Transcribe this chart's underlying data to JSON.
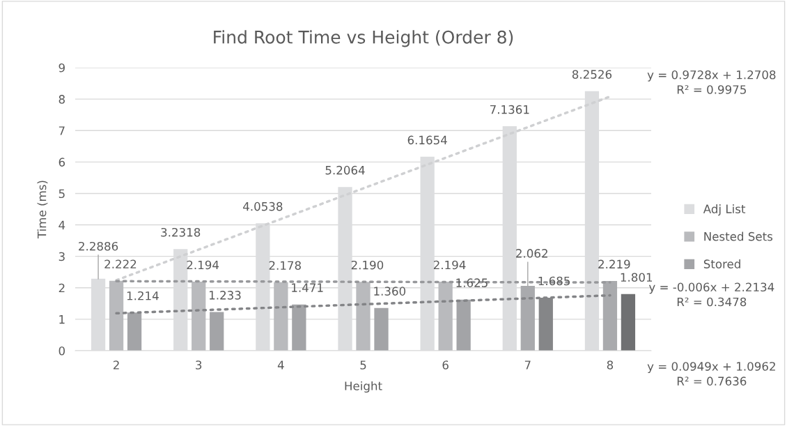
{
  "chart_data": {
    "type": "bar",
    "title": "Find Root Time vs Height (Order 8)",
    "xlabel": "Height",
    "ylabel": "Time (ms)",
    "categories": [
      "2",
      "3",
      "4",
      "5",
      "6",
      "7",
      "8"
    ],
    "series": [
      {
        "name": "Adj List",
        "color": "#dcdddf",
        "values": [
          2.2886,
          3.2318,
          4.0538,
          5.2064,
          6.1654,
          7.1361,
          8.2526
        ],
        "value_labels": [
          "2.2886",
          "3.2318",
          "4.0538",
          "5.2064",
          "6.1654",
          "7.1361",
          "8.2526"
        ]
      },
      {
        "name": "Nested Sets",
        "color": "#b9babd",
        "colors": [
          "#b9babd",
          "#b9babd",
          "#b9babd",
          "#b9babd",
          "#b9babd",
          "#a9aaad",
          "#a9aaad"
        ],
        "values": [
          2.222,
          2.194,
          2.178,
          2.19,
          2.194,
          2.062,
          2.219
        ],
        "value_labels": [
          "2.222",
          "2.194",
          "2.178",
          "2.190",
          "2.194",
          "2.062",
          "2.219"
        ]
      },
      {
        "name": "Stored",
        "color": "#a3a4a7",
        "colors": [
          "#a3a4a7",
          "#a3a4a7",
          "#a3a4a7",
          "#a3a4a7",
          "#a3a4a7",
          "#858688",
          "#6f7072"
        ],
        "values": [
          1.214,
          1.233,
          1.471,
          1.36,
          1.625,
          1.685,
          1.801
        ],
        "value_labels": [
          "1.214",
          "1.233",
          "1.471",
          "1.360",
          "1.625",
          "1.685",
          "1.801"
        ]
      },
      {
        "type": "line",
        "x": [
          "2",
          "8"
        ],
        "values": [
          2.24,
          8.08
        ],
        "color": "#cfd0d2",
        "line_style": "dotted"
      },
      {
        "type": "line",
        "x": [
          "2",
          "8"
        ],
        "values": [
          2.21,
          2.17
        ],
        "color": "#97989b",
        "line_style": "dotted"
      },
      {
        "type": "line",
        "x": [
          "2",
          "8"
        ],
        "values": [
          1.19,
          1.76
        ],
        "color": "#838487",
        "line_style": "dotted"
      }
    ],
    "annotations": [
      "y = 0.9728x + 1.2708\nR² = 0.9975",
      "y = -0.006x + 2.2134\nR² = 0.3478",
      "y = 0.0949x + 1.0962\nR² = 0.7636"
    ],
    "ylim": [
      0,
      9
    ],
    "yticks": [
      0,
      1,
      2,
      3,
      4,
      5,
      6,
      7,
      8,
      9
    ],
    "grid": "y",
    "legend": "right"
  }
}
